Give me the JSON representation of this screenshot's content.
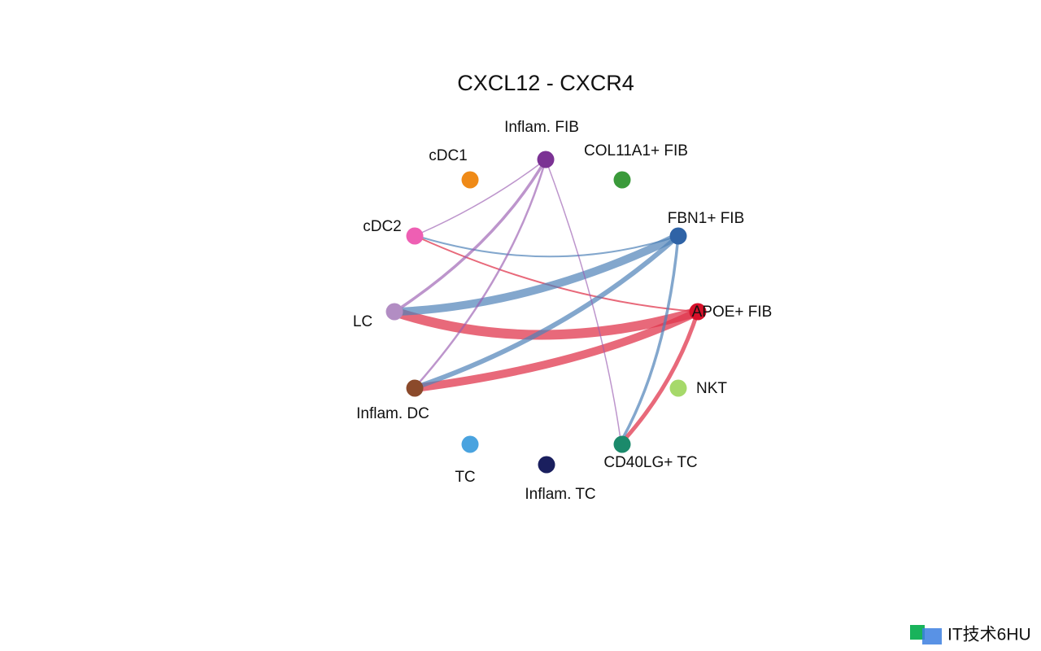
{
  "title": "CXCL12 - CXCR4",
  "nodes": [
    {
      "label": "Inflam. FIB",
      "color": "#7b3294"
    },
    {
      "label": "COL11A1+ FIB",
      "color": "#3a9a3a"
    },
    {
      "label": "FBN1+ FIB",
      "color": "#2f63a6"
    },
    {
      "label": "APOE+ FIB",
      "color": "#d7102a"
    },
    {
      "label": "NKT",
      "color": "#a6d96a"
    },
    {
      "label": "CD40LG+ TC",
      "color": "#1b8a6b"
    },
    {
      "label": "Inflam. TC",
      "color": "#1a1f5e"
    },
    {
      "label": "TC",
      "color": "#4aa3df"
    },
    {
      "label": "Inflam. DC",
      "color": "#8b4a2b"
    },
    {
      "label": "LC",
      "color": "#b28dc3"
    },
    {
      "label": "cDC2",
      "color": "#ee5fb3"
    },
    {
      "label": "cDC1",
      "color": "#ef8a17"
    }
  ],
  "watermark": "IT技术6HU"
}
